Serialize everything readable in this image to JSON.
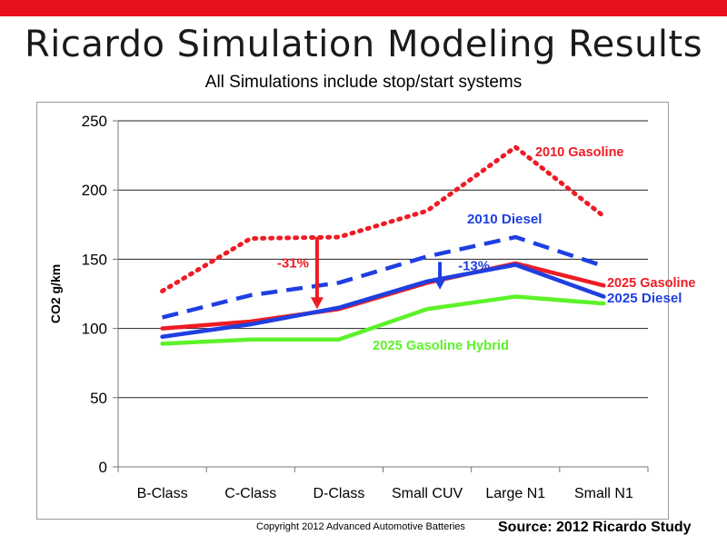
{
  "slide": {
    "title": "Ricardo Simulation Modeling Results",
    "subtitle": "All Simulations include stop/start systems",
    "copyright": "Copyright 2012 Advanced Automotive Batteries",
    "source": "Source:  2012 Ricardo Study"
  },
  "chart_data": {
    "type": "line",
    "title": "",
    "xlabel": "",
    "ylabel": "CO2 g/km",
    "ylim": [
      0,
      250
    ],
    "yticks": [
      0,
      50,
      100,
      150,
      200,
      250
    ],
    "grid": true,
    "categories": [
      "B-Class",
      "C-Class",
      "D-Class",
      "Small CUV",
      "Large N1",
      "Small N1"
    ],
    "series": [
      {
        "name": "2010 Gasoline",
        "values": [
          127,
          165,
          166,
          185,
          231,
          181
        ],
        "color": "#ee1c25",
        "style": "dotted"
      },
      {
        "name": "2010 Diesel",
        "values": [
          108,
          124,
          133,
          152,
          166,
          145
        ],
        "color": "#1f3fe0",
        "style": "dashed"
      },
      {
        "name": "2025 Gasoline",
        "values": [
          100,
          105,
          114,
          133,
          147,
          131
        ],
        "color": "#ee1c25",
        "style": "solid"
      },
      {
        "name": "2025 Diesel",
        "values": [
          94,
          103,
          115,
          134,
          146,
          123
        ],
        "color": "#1f3fe0",
        "style": "solid"
      },
      {
        "name": "2025 Gasoline Hybrid",
        "values": [
          89,
          92,
          92,
          114,
          123,
          118
        ],
        "color": "#5df22a",
        "style": "solid"
      }
    ],
    "annotations": [
      {
        "text": "-31%",
        "color": "#ee1c25",
        "category": "D-Class",
        "from": 166,
        "to": 114
      },
      {
        "text": "-13%",
        "color": "#1f3fe0",
        "category": "Small CUV",
        "from": 148,
        "to": 128
      }
    ],
    "legend": "inline labels"
  }
}
